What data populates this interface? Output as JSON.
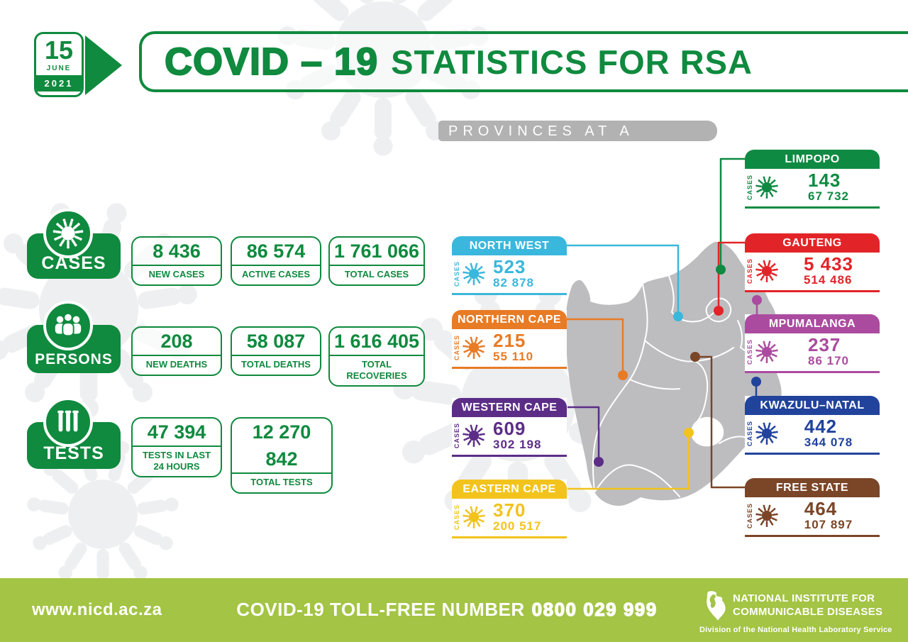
{
  "date_badge": {
    "day": "15",
    "month": "JUNE",
    "year": "2021"
  },
  "header": {
    "title_strong": "COVID – 19",
    "title_rest": "STATISTICS FOR RSA"
  },
  "national": {
    "groups": [
      {
        "label": "CASES",
        "icon": "virus-icon",
        "stats": [
          {
            "value": "8 436",
            "label": "NEW CASES"
          },
          {
            "value": "86 574",
            "label": "ACTIVE CASES"
          },
          {
            "value": "1 761 066",
            "label": "TOTAL CASES"
          }
        ]
      },
      {
        "label": "PERSONS",
        "icon": "people-icon",
        "stats": [
          {
            "value": "208",
            "label": "NEW DEATHS"
          },
          {
            "value": "58 087",
            "label": "TOTAL DEATHS"
          },
          {
            "value": "1 616 405",
            "label": "TOTAL RECOVERIES"
          }
        ]
      },
      {
        "label": "TESTS",
        "icon": "test-tubes-icon",
        "stats": [
          {
            "value": "47 394",
            "label": "TESTS IN LAST 24 HOURS"
          },
          {
            "value": "12 270 842",
            "label": "TOTAL TESTS"
          }
        ]
      }
    ]
  },
  "provinces_panel": {
    "title": "PROVINCES AT A GLANCE",
    "cases_label": "CASES",
    "provinces": [
      {
        "name": "NORTH WEST",
        "new_cases": "523",
        "total_cases": "82 878",
        "color": "#3ab7dc"
      },
      {
        "name": "NORTHERN CAPE",
        "new_cases": "215",
        "total_cases": "55 110",
        "color": "#e87b25"
      },
      {
        "name": "WESTERN CAPE",
        "new_cases": "609",
        "total_cases": "302 198",
        "color": "#5c2d87"
      },
      {
        "name": "EASTERN CAPE",
        "new_cases": "370",
        "total_cases": "200 517",
        "color": "#f2c31c"
      },
      {
        "name": "LIMPOPO",
        "new_cases": "143",
        "total_cases": "67 732",
        "color": "#0f8a42"
      },
      {
        "name": "GAUTENG",
        "new_cases": "5 433",
        "total_cases": "514 486",
        "color": "#e22428"
      },
      {
        "name": "MPUMALANGA",
        "new_cases": "237",
        "total_cases": "86 170",
        "color": "#ab4b9f"
      },
      {
        "name": "KWAZULU–NATAL",
        "new_cases": "442",
        "total_cases": "344 078",
        "color": "#21439c"
      },
      {
        "name": "FREE STATE",
        "new_cases": "464",
        "total_cases": "107 897",
        "color": "#7b4527"
      }
    ]
  },
  "footer": {
    "website": "www.nicd.ac.za",
    "tollfree_label": "COVID-19 TOLL-FREE NUMBER",
    "tollfree_number": "0800 029 999",
    "org_line1": "NATIONAL INSTITUTE FOR",
    "org_line2": "COMMUNICABLE DISEASES",
    "org_sub": "Division of the National Health Laboratory Service"
  },
  "colors": {
    "brand_green": "#0f8a3e",
    "footer_green": "#a3c444",
    "banner_gray": "#b2b2b2",
    "map_gray": "#bdbdc0"
  },
  "chart_data": {
    "type": "table",
    "title": "COVID-19 STATISTICS FOR RSA — 15 JUNE 2021",
    "national": {
      "new_cases": 8436,
      "active_cases": 86574,
      "total_cases": 1761066,
      "new_deaths": 208,
      "total_deaths": 58087,
      "total_recoveries": 1616405,
      "tests_last_24_hours": 47394,
      "total_tests": 12270842
    },
    "provinces": [
      {
        "province": "LIMPOPO",
        "new_cases": 143,
        "total_cases": 67732
      },
      {
        "province": "GAUTENG",
        "new_cases": 5433,
        "total_cases": 514486
      },
      {
        "province": "NORTH WEST",
        "new_cases": 523,
        "total_cases": 82878
      },
      {
        "province": "NORTHERN CAPE",
        "new_cases": 215,
        "total_cases": 55110
      },
      {
        "province": "MPUMALANGA",
        "new_cases": 237,
        "total_cases": 86170
      },
      {
        "province": "WESTERN CAPE",
        "new_cases": 609,
        "total_cases": 302198
      },
      {
        "province": "KWAZULU-NATAL",
        "new_cases": 442,
        "total_cases": 344078
      },
      {
        "province": "EASTERN CAPE",
        "new_cases": 370,
        "total_cases": 200517
      },
      {
        "province": "FREE STATE",
        "new_cases": 464,
        "total_cases": 107897
      }
    ]
  }
}
